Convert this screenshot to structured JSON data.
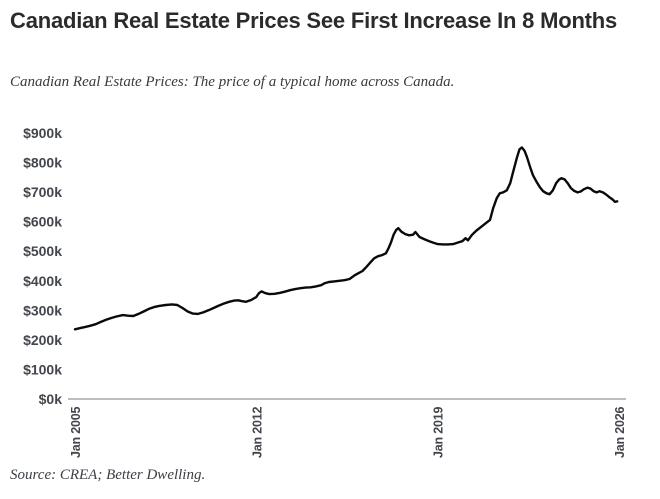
{
  "chart_data": {
    "type": "line",
    "title": "Canadian Real Estate Prices See First Increase In 8 Months",
    "subtitle": "Canadian Real Estate Prices: The price of a typical home across Canada.",
    "source": "Source: CREA; Better Dwelling.",
    "xlabel": "",
    "ylabel": "",
    "unit": "CAD, thousands",
    "xlim": [
      2005.0,
      2026.08
    ],
    "ylim": [
      0,
      900
    ],
    "grid": false,
    "legend": "none",
    "line_color": "#0a0a0a",
    "baseline_color": "#a8a8a8",
    "axis_label_color": "#43474d",
    "x_ticks": [
      {
        "pos": 2005.0,
        "label": "Jan 2005"
      },
      {
        "pos": 2012.0,
        "label": "Jan 2012"
      },
      {
        "pos": 2019.0,
        "label": "Jan 2019"
      },
      {
        "pos": 2026.0,
        "label": "Jan 2026"
      }
    ],
    "y_ticks": [
      {
        "pos": 900,
        "label": "$900k"
      },
      {
        "pos": 800,
        "label": "$800k"
      },
      {
        "pos": 700,
        "label": "$700k"
      },
      {
        "pos": 600,
        "label": "$600k"
      },
      {
        "pos": 500,
        "label": "$500k"
      },
      {
        "pos": 400,
        "label": "$400k"
      },
      {
        "pos": 300,
        "label": "$300k"
      },
      {
        "pos": 200,
        "label": "$200k"
      },
      {
        "pos": 100,
        "label": "$100k"
      },
      {
        "pos": 0,
        "label": "$0k"
      }
    ],
    "series": [
      {
        "name": "Price of a typical home across Canada",
        "points": [
          [
            2005.0,
            236
          ],
          [
            2005.2,
            240
          ],
          [
            2005.4,
            244
          ],
          [
            2005.6,
            248
          ],
          [
            2005.8,
            253
          ],
          [
            2006.0,
            261
          ],
          [
            2006.2,
            268
          ],
          [
            2006.4,
            274
          ],
          [
            2006.6,
            279
          ],
          [
            2006.85,
            284
          ],
          [
            2007.05,
            282
          ],
          [
            2007.25,
            281
          ],
          [
            2007.45,
            288
          ],
          [
            2007.65,
            296
          ],
          [
            2007.85,
            305
          ],
          [
            2008.05,
            311
          ],
          [
            2008.25,
            315
          ],
          [
            2008.5,
            318
          ],
          [
            2008.75,
            320
          ],
          [
            2008.95,
            318
          ],
          [
            2009.15,
            308
          ],
          [
            2009.35,
            296
          ],
          [
            2009.55,
            289
          ],
          [
            2009.75,
            288
          ],
          [
            2009.95,
            293
          ],
          [
            2010.15,
            300
          ],
          [
            2010.35,
            308
          ],
          [
            2010.55,
            316
          ],
          [
            2010.75,
            323
          ],
          [
            2010.95,
            329
          ],
          [
            2011.15,
            333
          ],
          [
            2011.3,
            334
          ],
          [
            2011.45,
            331
          ],
          [
            2011.6,
            329
          ],
          [
            2011.8,
            335
          ],
          [
            2012.0,
            345
          ],
          [
            2012.1,
            358
          ],
          [
            2012.2,
            364
          ],
          [
            2012.35,
            358
          ],
          [
            2012.5,
            355
          ],
          [
            2012.7,
            356
          ],
          [
            2012.9,
            359
          ],
          [
            2013.1,
            363
          ],
          [
            2013.3,
            368
          ],
          [
            2013.5,
            372
          ],
          [
            2013.7,
            375
          ],
          [
            2013.9,
            377
          ],
          [
            2014.1,
            378
          ],
          [
            2014.3,
            381
          ],
          [
            2014.5,
            385
          ],
          [
            2014.65,
            392
          ],
          [
            2014.8,
            396
          ],
          [
            2015.0,
            398
          ],
          [
            2015.2,
            400
          ],
          [
            2015.4,
            402
          ],
          [
            2015.6,
            406
          ],
          [
            2015.8,
            419
          ],
          [
            2015.95,
            426
          ],
          [
            2016.1,
            433
          ],
          [
            2016.25,
            447
          ],
          [
            2016.4,
            462
          ],
          [
            2016.55,
            476
          ],
          [
            2016.7,
            483
          ],
          [
            2016.85,
            487
          ],
          [
            2017.0,
            493
          ],
          [
            2017.1,
            510
          ],
          [
            2017.2,
            530
          ],
          [
            2017.3,
            556
          ],
          [
            2017.4,
            572
          ],
          [
            2017.48,
            578
          ],
          [
            2017.6,
            566
          ],
          [
            2017.75,
            558
          ],
          [
            2017.9,
            554
          ],
          [
            2018.05,
            556
          ],
          [
            2018.14,
            565
          ],
          [
            2018.3,
            548
          ],
          [
            2018.5,
            540
          ],
          [
            2018.7,
            533
          ],
          [
            2018.85,
            528
          ],
          [
            2019.0,
            524
          ],
          [
            2019.2,
            523
          ],
          [
            2019.4,
            523
          ],
          [
            2019.6,
            524
          ],
          [
            2019.8,
            530
          ],
          [
            2019.95,
            534
          ],
          [
            2020.08,
            544
          ],
          [
            2020.17,
            537
          ],
          [
            2020.33,
            556
          ],
          [
            2020.5,
            570
          ],
          [
            2020.7,
            584
          ],
          [
            2020.9,
            598
          ],
          [
            2021.02,
            606
          ],
          [
            2021.14,
            645
          ],
          [
            2021.28,
            679
          ],
          [
            2021.4,
            696
          ],
          [
            2021.52,
            699
          ],
          [
            2021.67,
            706
          ],
          [
            2021.8,
            730
          ],
          [
            2021.9,
            764
          ],
          [
            2022.05,
            814
          ],
          [
            2022.16,
            845
          ],
          [
            2022.25,
            851
          ],
          [
            2022.35,
            840
          ],
          [
            2022.45,
            818
          ],
          [
            2022.57,
            784
          ],
          [
            2022.68,
            757
          ],
          [
            2022.83,
            733
          ],
          [
            2022.95,
            716
          ],
          [
            2023.07,
            703
          ],
          [
            2023.2,
            696
          ],
          [
            2023.32,
            693
          ],
          [
            2023.45,
            706
          ],
          [
            2023.57,
            730
          ],
          [
            2023.68,
            742
          ],
          [
            2023.78,
            747
          ],
          [
            2023.9,
            743
          ],
          [
            2024.02,
            730
          ],
          [
            2024.14,
            714
          ],
          [
            2024.27,
            704
          ],
          [
            2024.4,
            699
          ],
          [
            2024.52,
            702
          ],
          [
            2024.65,
            710
          ],
          [
            2024.78,
            715
          ],
          [
            2024.9,
            712
          ],
          [
            2025.02,
            703
          ],
          [
            2025.14,
            699
          ],
          [
            2025.25,
            703
          ],
          [
            2025.38,
            699
          ],
          [
            2025.5,
            692
          ],
          [
            2025.62,
            683
          ],
          [
            2025.74,
            676
          ],
          [
            2025.85,
            667
          ],
          [
            2025.93,
            669
          ]
        ]
      }
    ]
  }
}
